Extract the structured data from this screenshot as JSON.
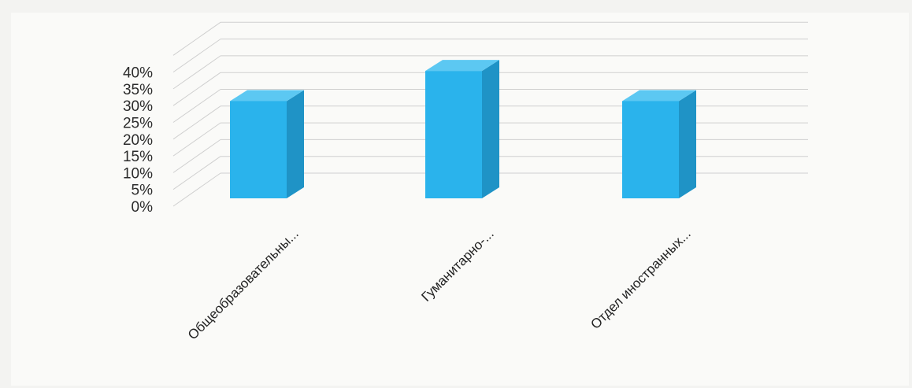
{
  "chart_data": {
    "type": "bar",
    "style": "3d-column",
    "title": "",
    "xlabel": "",
    "ylabel": "",
    "categories": [
      "Общеобразовательны...",
      "Гуманитарно-...",
      "Отдел иностранных..."
    ],
    "series": [
      {
        "values": [
          0.29,
          0.38,
          0.29
        ]
      }
    ],
    "yticks": [
      "0%",
      "5%",
      "10%",
      "15%",
      "20%",
      "25%",
      "30%",
      "35%",
      "40%"
    ],
    "ylim": [
      0,
      0.45
    ],
    "grid": true,
    "legend": "none",
    "colors": {
      "bar_front": "#2ab3ec",
      "bar_side": "#1f93c6",
      "bar_top": "#5cc8f2",
      "grid": "#cfcfcf"
    }
  }
}
